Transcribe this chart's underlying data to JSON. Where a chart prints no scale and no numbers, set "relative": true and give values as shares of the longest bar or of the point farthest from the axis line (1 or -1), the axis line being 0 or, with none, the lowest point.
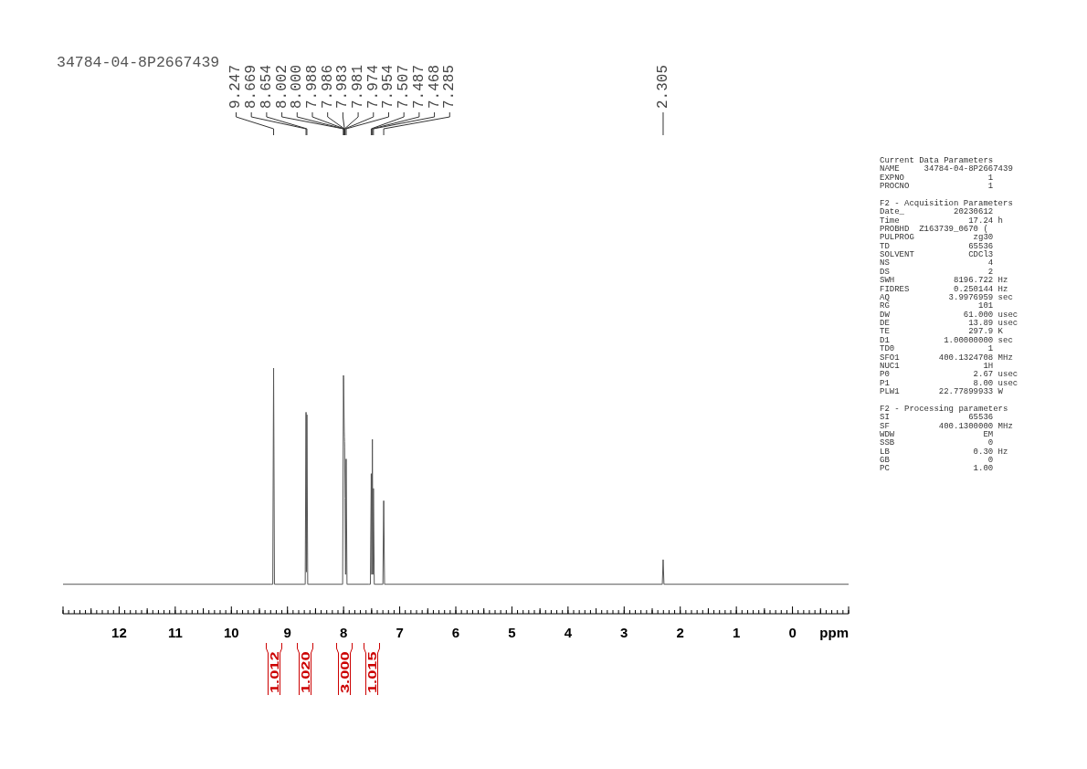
{
  "chart_data": {
    "type": "line",
    "title": "34784-04-8P2667439",
    "xlabel": "ppm",
    "relative": true,
    "color": "#555555",
    "xlim": [
      13,
      -1
    ],
    "xticks": [
      {
        "value": 13,
        "label": null
      },
      {
        "value": 12.9,
        "label": null
      },
      {
        "value": 12.8,
        "label": null
      },
      {
        "value": 12.7,
        "label": null
      },
      {
        "value": 12.6,
        "label": null
      },
      {
        "value": 12.5,
        "label": null
      },
      {
        "value": 12.4,
        "label": null
      },
      {
        "value": 12.3,
        "label": null
      },
      {
        "value": 12.2,
        "label": null
      },
      {
        "value": 12.1,
        "label": null
      },
      12,
      {
        "value": 11.9,
        "label": null
      },
      {
        "value": 11.8,
        "label": null
      },
      {
        "value": 11.7,
        "label": null
      },
      {
        "value": 11.6,
        "label": null
      },
      {
        "value": 11.5,
        "label": null
      },
      {
        "value": 11.4,
        "label": null
      },
      {
        "value": 11.3,
        "label": null
      },
      {
        "value": 11.2,
        "label": null
      },
      {
        "value": 11.1,
        "label": null
      },
      11,
      {
        "value": 10.9,
        "label": null
      },
      {
        "value": 10.8,
        "label": null
      },
      {
        "value": 10.7,
        "label": null
      },
      {
        "value": 10.6,
        "label": null
      },
      {
        "value": 10.5,
        "label": null
      },
      {
        "value": 10.4,
        "label": null
      },
      {
        "value": 10.3,
        "label": null
      },
      {
        "value": 10.2,
        "label": null
      },
      {
        "value": 10.1,
        "label": null
      },
      10,
      {
        "value": 9.9,
        "label": null
      },
      {
        "value": 9.8,
        "label": null
      },
      {
        "value": 9.7,
        "label": null
      },
      {
        "value": 9.6,
        "label": null
      },
      {
        "value": 9.5,
        "label": null
      },
      {
        "value": 9.4,
        "label": null
      },
      {
        "value": 9.3,
        "label": null
      },
      {
        "value": 9.2,
        "label": null
      },
      {
        "value": 9.1,
        "label": null
      },
      9,
      {
        "value": 8.9,
        "label": null
      },
      {
        "value": 8.8,
        "label": null
      },
      {
        "value": 8.7,
        "label": null
      },
      {
        "value": 8.6,
        "label": null
      },
      {
        "value": 8.5,
        "label": null
      },
      {
        "value": 8.4,
        "label": null
      },
      {
        "value": 8.3,
        "label": null
      },
      {
        "value": 8.2,
        "label": null
      },
      {
        "value": 8.1,
        "label": null
      },
      8,
      {
        "value": 7.9,
        "label": null
      },
      {
        "value": 7.8,
        "label": null
      },
      {
        "value": 7.7,
        "label": null
      },
      {
        "value": 7.6,
        "label": null
      },
      {
        "value": 7.5,
        "label": null
      },
      {
        "value": 7.4,
        "label": null
      },
      {
        "value": 7.3,
        "label": null
      },
      {
        "value": 7.2,
        "label": null
      },
      {
        "value": 7.1,
        "label": null
      },
      7,
      {
        "value": 6.9,
        "label": null
      },
      {
        "value": 6.8,
        "label": null
      },
      {
        "value": 6.7,
        "label": null
      },
      {
        "value": 6.6,
        "label": null
      },
      {
        "value": 6.5,
        "label": null
      },
      {
        "value": 6.4,
        "label": null
      },
      {
        "value": 6.3,
        "label": null
      },
      {
        "value": 6.2,
        "label": null
      },
      {
        "value": 6.1,
        "label": null
      },
      6,
      {
        "value": 5.9,
        "label": null
      },
      {
        "value": 5.8,
        "label": null
      },
      {
        "value": 5.7,
        "label": null
      },
      {
        "value": 5.6,
        "label": null
      },
      {
        "value": 5.5,
        "label": null
      },
      {
        "value": 5.4,
        "label": null
      },
      {
        "value": 5.3,
        "label": null
      },
      {
        "value": 5.2,
        "label": null
      },
      {
        "value": 5.1,
        "label": null
      },
      5,
      {
        "value": 4.9,
        "label": null
      },
      {
        "value": 4.8,
        "label": null
      },
      {
        "value": 4.7,
        "label": null
      },
      {
        "value": 4.6,
        "label": null
      },
      {
        "value": 4.5,
        "label": null
      },
      {
        "value": 4.4,
        "label": null
      },
      {
        "value": 4.3,
        "label": null
      },
      {
        "value": 4.2,
        "label": null
      },
      {
        "value": 4.1,
        "label": null
      },
      4,
      {
        "value": 3.9,
        "label": null
      },
      {
        "value": 3.8,
        "label": null
      },
      {
        "value": 3.7,
        "label": null
      },
      {
        "value": 3.6,
        "label": null
      },
      {
        "value": 3.5,
        "label": null
      },
      {
        "value": 3.4,
        "label": null
      },
      {
        "value": 3.3,
        "label": null
      },
      {
        "value": 3.2,
        "label": null
      },
      {
        "value": 3.1,
        "label": null
      },
      3,
      {
        "value": 2.9,
        "label": null
      },
      {
        "value": 2.8,
        "label": null
      },
      {
        "value": 2.7,
        "label": null
      },
      {
        "value": 2.6,
        "label": null
      },
      {
        "value": 2.5,
        "label": null
      },
      {
        "value": 2.4,
        "label": null
      },
      {
        "value": 2.3,
        "label": null
      },
      {
        "value": 2.2,
        "label": null
      },
      {
        "value": 2.1,
        "label": null
      },
      2,
      {
        "value": 1.9,
        "label": null
      },
      {
        "value": 1.8,
        "label": null
      },
      {
        "value": 1.7,
        "label": null
      },
      {
        "value": 1.6,
        "label": null
      },
      {
        "value": 1.5,
        "label": null
      },
      {
        "value": 1.4,
        "label": null
      },
      {
        "value": 1.3,
        "label": null
      },
      {
        "value": 1.2,
        "label": null
      },
      {
        "value": 1.1,
        "label": null
      },
      1,
      {
        "value": 0.9,
        "label": null
      },
      {
        "value": 0.8,
        "label": null
      },
      {
        "value": 0.7,
        "label": null
      },
      {
        "value": 0.6,
        "label": null
      },
      {
        "value": 0.5,
        "label": null
      },
      {
        "value": 0.4,
        "label": null
      },
      {
        "value": 0.3,
        "label": null
      },
      {
        "value": 0.2,
        "label": null
      },
      {
        "value": 0.1,
        "label": null
      },
      0,
      {
        "value": -0.1,
        "label": null
      },
      {
        "value": -0.2,
        "label": null
      },
      {
        "value": -0.3,
        "label": null
      },
      {
        "value": -0.4,
        "label": null
      },
      {
        "value": -0.5,
        "label": null
      },
      {
        "value": -0.6,
        "label": null
      },
      {
        "value": -0.7,
        "label": null
      },
      {
        "value": -0.8,
        "label": null
      },
      {
        "value": -0.9,
        "label": null
      },
      {
        "value": -1,
        "label": null
      }
    ],
    "x": [
      13,
      9.3,
      9.262,
      9.247,
      9.232,
      8.7,
      8.684,
      8.669,
      8.662,
      8.654,
      8.639,
      8.05,
      8.017,
      8.002,
      8.0,
      7.988,
      7.986,
      7.983,
      7.981,
      7.974,
      7.964,
      7.954,
      7.939,
      7.55,
      7.522,
      7.507,
      7.497,
      7.487,
      7.477,
      7.468,
      7.453,
      7.3,
      7.285,
      7.27,
      2.32,
      2.305,
      2.29,
      -1
    ],
    "values": [
      0.12,
      0.12,
      0.12,
      1.0,
      0.12,
      0.12,
      0.12,
      0.82,
      0.17,
      0.81,
      0.12,
      0.12,
      0.12,
      0.97,
      0.96,
      0.74,
      0.72,
      0.7,
      0.68,
      0.47,
      0.16,
      0.63,
      0.12,
      0.12,
      0.12,
      0.57,
      0.16,
      0.71,
      0.16,
      0.51,
      0.12,
      0.12,
      0.46,
      0.12,
      0.12,
      0.22,
      0.12,
      0.12
    ],
    "annotations": [
      {
        "text": "9.247",
        "x": 9.247
      },
      {
        "text": "8.669",
        "x": 8.669
      },
      {
        "text": "8.654",
        "x": 8.654
      },
      {
        "text": "8.002",
        "x": 8.002
      },
      {
        "text": "8.000",
        "x": 8.0
      },
      {
        "text": "7.988",
        "x": 7.988
      },
      {
        "text": "7.986",
        "x": 7.986
      },
      {
        "text": "7.983",
        "x": 7.983
      },
      {
        "text": "7.981",
        "x": 7.981
      },
      {
        "text": "7.974",
        "x": 7.974
      },
      {
        "text": "7.954",
        "x": 7.954
      },
      {
        "text": "7.507",
        "x": 7.507
      },
      {
        "text": "7.487",
        "x": 7.487
      },
      {
        "text": "7.468",
        "x": 7.468
      },
      {
        "text": "7.285",
        "x": 7.285
      },
      {
        "text": "2.305",
        "x": 2.305
      },
      "Current Data Parameters\nNAME     34784-04-8P2667439\nEXPNO                 1\nPROCNO                1",
      "F2 - Acquisition Parameters\nDate_          20230612\nTime              17.24 h\nPROBHD  Z163739_0670 (\nPULPROG            zg30\nTD                65536\nSOLVENT           CDCl3\nNS                    4\nDS                    2\nSWH            8196.722 Hz\nFIDRES         0.250144 Hz\nAQ            3.9976959 sec\nRG                  101\nDW               61.000 usec\nDE                13.89 usec\nTE                297.9 K\nD1           1.00000000 sec\nTD0                   1\nSFO1        400.1324708 MHz\nNUC1                 1H\nP0                 2.67 usec\nP1                 8.00 usec\nPLW1        22.77899933 W",
      "F2 - Processing parameters\nSI                65536\nSF          400.1300000 MHz\nWDW                  EM\nSSB                   0\nLB                 0.30 Hz\nGB                    0\nPC                 1.00",
      "1.012",
      "1.020",
      "3.000",
      "1.015"
    ]
  }
}
